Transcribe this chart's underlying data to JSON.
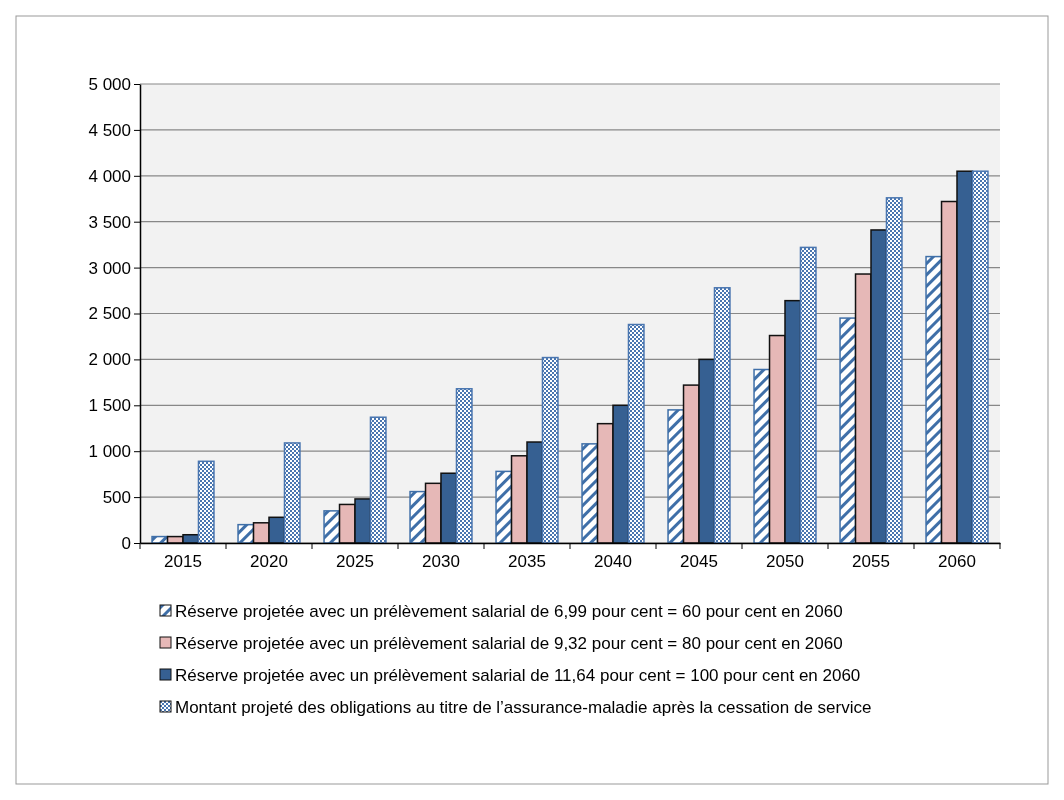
{
  "chart_data": {
    "type": "bar",
    "categories": [
      "2015",
      "2020",
      "2025",
      "2030",
      "2035",
      "2040",
      "2045",
      "2050",
      "2055",
      "2060"
    ],
    "series": [
      {
        "name": "Réserve projetée avec un prélèvement salarial de 6,99 pour cent = 60 pour cent en 2060",
        "color": "#3f6fa8",
        "values": [
          70,
          200,
          350,
          560,
          780,
          1080,
          1450,
          1890,
          2450,
          3120
        ]
      },
      {
        "name": "Réserve projetée avec un prélèvement salarial de 9,32 pour cent = 80 pour cent en 2060",
        "color": "#e6b8b7",
        "values": [
          70,
          220,
          420,
          650,
          950,
          1300,
          1720,
          2260,
          2930,
          3720
        ]
      },
      {
        "name": "Réserve projetée avec un prélèvement salarial de 11,64 pour cent = 100 pour cent en 2060",
        "color": "#366092",
        "values": [
          90,
          280,
          480,
          760,
          1100,
          1500,
          2000,
          2640,
          3410,
          4050
        ]
      },
      {
        "name": "Montant projeté des obligations au titre de l’assurance-maladie après la cessation de service",
        "color": "#4a76b0",
        "values": [
          890,
          1090,
          1370,
          1680,
          2020,
          2380,
          2780,
          3220,
          3760,
          4050
        ]
      }
    ],
    "ylim": [
      0,
      5000
    ],
    "yticks": [
      {
        "value": 0,
        "label": "0"
      },
      {
        "value": 500,
        "label": "500"
      },
      {
        "value": 1000,
        "label": "1 000"
      },
      {
        "value": 1500,
        "label": "1 500"
      },
      {
        "value": 2000,
        "label": "2 000"
      },
      {
        "value": 2500,
        "label": "2 500"
      },
      {
        "value": 3000,
        "label": "3 000"
      },
      {
        "value": 3500,
        "label": "3 500"
      },
      {
        "value": 4000,
        "label": "4 000"
      },
      {
        "value": 4500,
        "label": "4 500"
      },
      {
        "value": 5000,
        "label": "5 000"
      }
    ],
    "grid": "y",
    "legend": "bottom"
  }
}
